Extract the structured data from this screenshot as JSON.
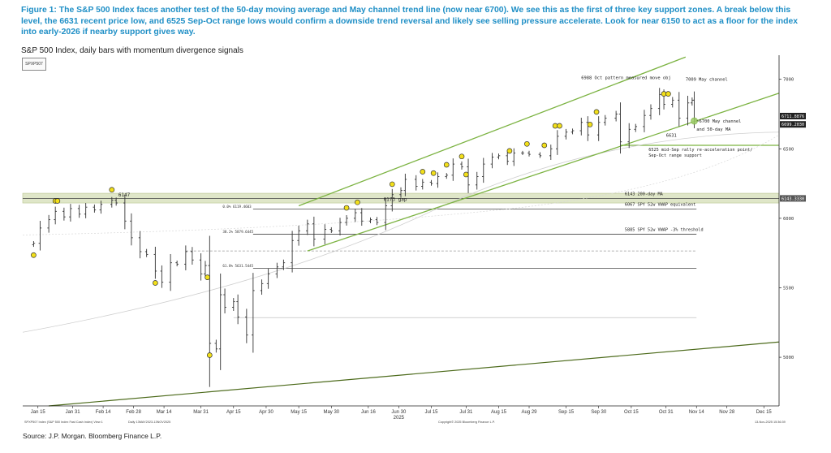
{
  "caption": "Figure 1: The S&P 500 Index faces another test of the 50-day moving average and May channel trend line (now near 6700). We see this as the first of three key support zones. A break below this level, the 6631 recent price low, and 6525 Sep-Oct range lows would confirm a downside trend reversal and likely see selling pressure accelerate. Look for near 6150 to act as a floor for the index into early-2026 if nearby support gives way.",
  "subtitle": "S&P 500 Index, daily bars with momentum divergence signals",
  "ticker_box": "SPXP507",
  "source": "Source: J.P. Morgan. Bloomberg Finance L.P.",
  "bloomberg_footer": {
    "left": "SPXP507 Index (S&P 500 Index Fast Cash Index) View 1",
    "mid": "Daily 13MAY2023-13NOV2025",
    "center": "Copyright© 2025 Bloomberg Finance L.P.",
    "right": "13-Nov-2025 15:36:39"
  },
  "colors": {
    "caption": "#1f8fc6",
    "channel": "#7cb342",
    "longtrend": "#4d6b1c",
    "bars": "#333333",
    "support_band": "#dfe6c8",
    "signal": "#f2df1a"
  },
  "chart_data": {
    "type": "ohlc",
    "title": "",
    "xlabel": "",
    "ylabel": "",
    "x_ticks": [
      "Jan 15",
      "Jan 31",
      "Feb 14",
      "Feb 28",
      "Mar 14",
      "Mar 31",
      "Apr 15",
      "Apr 30",
      "May 15",
      "May 30",
      "Jun 16",
      "Jun 30",
      "Jul 15",
      "Jul 31",
      "Aug 15",
      "Aug 29",
      "Sep 15",
      "Sep 30",
      "Oct 15",
      "Oct 31",
      "Nov 14",
      "Nov 28",
      "Dec 15"
    ],
    "x_year_label": "2025",
    "y_ticks": [
      5000,
      5500,
      6000,
      6500,
      7000
    ],
    "ylim": [
      4650,
      7150
    ],
    "series_close": [
      [
        "2025-01-13",
        5820
      ],
      [
        "2025-01-16",
        5930
      ],
      [
        "2025-01-20",
        5990
      ],
      [
        "2025-01-23",
        6050
      ],
      [
        "2025-01-27",
        6010
      ],
      [
        "2025-01-30",
        6070
      ],
      [
        "2025-02-03",
        6030
      ],
      [
        "2025-02-06",
        6080
      ],
      [
        "2025-02-10",
        6060
      ],
      [
        "2025-02-13",
        6100
      ],
      [
        "2025-02-18",
        6130
      ],
      [
        "2025-02-20",
        6110
      ],
      [
        "2025-02-24",
        5980
      ],
      [
        "2025-02-27",
        5860
      ],
      [
        "2025-03-03",
        5760
      ],
      [
        "2025-03-06",
        5740
      ],
      [
        "2025-03-10",
        5620
      ],
      [
        "2025-03-13",
        5540
      ],
      [
        "2025-03-17",
        5680
      ],
      [
        "2025-03-20",
        5670
      ],
      [
        "2025-03-24",
        5760
      ],
      [
        "2025-03-27",
        5700
      ],
      [
        "2025-03-31",
        5600
      ],
      [
        "2025-04-02",
        5660
      ],
      [
        "2025-04-04",
        5100
      ],
      [
        "2025-04-07",
        5060
      ],
      [
        "2025-04-09",
        5450
      ],
      [
        "2025-04-11",
        5360
      ],
      [
        "2025-04-15",
        5400
      ],
      [
        "2025-04-17",
        5290
      ],
      [
        "2025-04-21",
        5160
      ],
      [
        "2025-04-24",
        5480
      ],
      [
        "2025-04-28",
        5530
      ],
      [
        "2025-05-01",
        5600
      ],
      [
        "2025-05-05",
        5650
      ],
      [
        "2025-05-08",
        5680
      ],
      [
        "2025-05-12",
        5840
      ],
      [
        "2025-05-15",
        5910
      ],
      [
        "2025-05-19",
        5960
      ],
      [
        "2025-05-22",
        5850
      ],
      [
        "2025-05-27",
        5920
      ],
      [
        "2025-05-30",
        5910
      ],
      [
        "2025-06-03",
        5970
      ],
      [
        "2025-06-06",
        6000
      ],
      [
        "2025-06-10",
        6040
      ],
      [
        "2025-06-13",
        5980
      ],
      [
        "2025-06-17",
        5990
      ],
      [
        "2025-06-20",
        5970
      ],
      [
        "2025-06-24",
        6090
      ],
      [
        "2025-06-27",
        6170
      ],
      [
        "2025-07-01",
        6200
      ],
      [
        "2025-07-03",
        6280
      ],
      [
        "2025-07-08",
        6230
      ],
      [
        "2025-07-11",
        6260
      ],
      [
        "2025-07-15",
        6250
      ],
      [
        "2025-07-18",
        6300
      ],
      [
        "2025-07-22",
        6310
      ],
      [
        "2025-07-25",
        6390
      ],
      [
        "2025-07-29",
        6370
      ],
      [
        "2025-08-01",
        6240
      ],
      [
        "2025-08-05",
        6300
      ],
      [
        "2025-08-08",
        6390
      ],
      [
        "2025-08-12",
        6440
      ],
      [
        "2025-08-15",
        6450
      ],
      [
        "2025-08-19",
        6410
      ],
      [
        "2025-08-22",
        6470
      ],
      [
        "2025-08-26",
        6470
      ],
      [
        "2025-08-29",
        6460
      ],
      [
        "2025-09-03",
        6450
      ],
      [
        "2025-09-08",
        6500
      ],
      [
        "2025-09-11",
        6590
      ],
      [
        "2025-09-15",
        6620
      ],
      [
        "2025-09-18",
        6630
      ],
      [
        "2025-09-22",
        6690
      ],
      [
        "2025-09-25",
        6600
      ],
      [
        "2025-09-30",
        6690
      ],
      [
        "2025-10-03",
        6720
      ],
      [
        "2025-10-08",
        6750
      ],
      [
        "2025-10-10",
        6550
      ],
      [
        "2025-10-14",
        6640
      ],
      [
        "2025-10-17",
        6660
      ],
      [
        "2025-10-21",
        6740
      ],
      [
        "2025-10-24",
        6790
      ],
      [
        "2025-10-28",
        6890
      ],
      [
        "2025-10-30",
        6820
      ],
      [
        "2025-11-03",
        6850
      ],
      [
        "2025-11-06",
        6720
      ],
      [
        "2025-11-10",
        6830
      ],
      [
        "2025-11-12",
        6850
      ],
      [
        "2025-11-13",
        6710
      ]
    ],
    "right_axis_tags": [
      {
        "label": "6711.8876",
        "value": 6712
      },
      {
        "label": "6699.2030",
        "value": 6699
      },
      {
        "label": "6143.3330",
        "value": 6143
      }
    ],
    "horizontal_levels": [
      {
        "value": 6525,
        "label": "6525 mid-Sep rally re-acceleration point/",
        "label2": "Sep-Oct range support"
      },
      {
        "value": 6143,
        "label": "6143 200-day MA"
      },
      {
        "value": 6067,
        "label": "6067 SPY 52w VWAP equivalent",
        "tag": "0.0% 6119.4603"
      },
      {
        "value": 5885,
        "label": "5885 SPY 52w VWAP -3% threshold",
        "tag": "38.2% 5879.6445"
      },
      {
        "value": 5640,
        "label": "",
        "tag": "61.8% 5631.5445"
      },
      {
        "value": 5765,
        "label": ""
      }
    ],
    "support_band": [
      6110,
      6180
    ],
    "annotations": [
      {
        "text": "6988 Oct pattern measured move obj"
      },
      {
        "text": "7009 May channel"
      },
      {
        "text": "~6700 May channel"
      },
      {
        "text": "and 50-day MA"
      },
      {
        "text": "6631"
      },
      {
        "text": "6173 gap"
      },
      {
        "text": "6147"
      }
    ],
    "momentum_signals_dates": [
      "2025-01-13",
      "2025-01-23",
      "2025-01-24",
      "2025-02-18",
      "2025-03-10",
      "2025-04-03",
      "2025-04-04",
      "2025-06-06",
      "2025-06-11",
      "2025-06-27",
      "2025-07-11",
      "2025-07-16",
      "2025-07-22",
      "2025-07-29",
      "2025-07-31",
      "2025-08-20",
      "2025-08-28",
      "2025-09-05",
      "2025-09-10",
      "2025-09-12",
      "2025-09-26",
      "2025-09-29",
      "2025-10-30",
      "2025-11-01"
    ]
  }
}
